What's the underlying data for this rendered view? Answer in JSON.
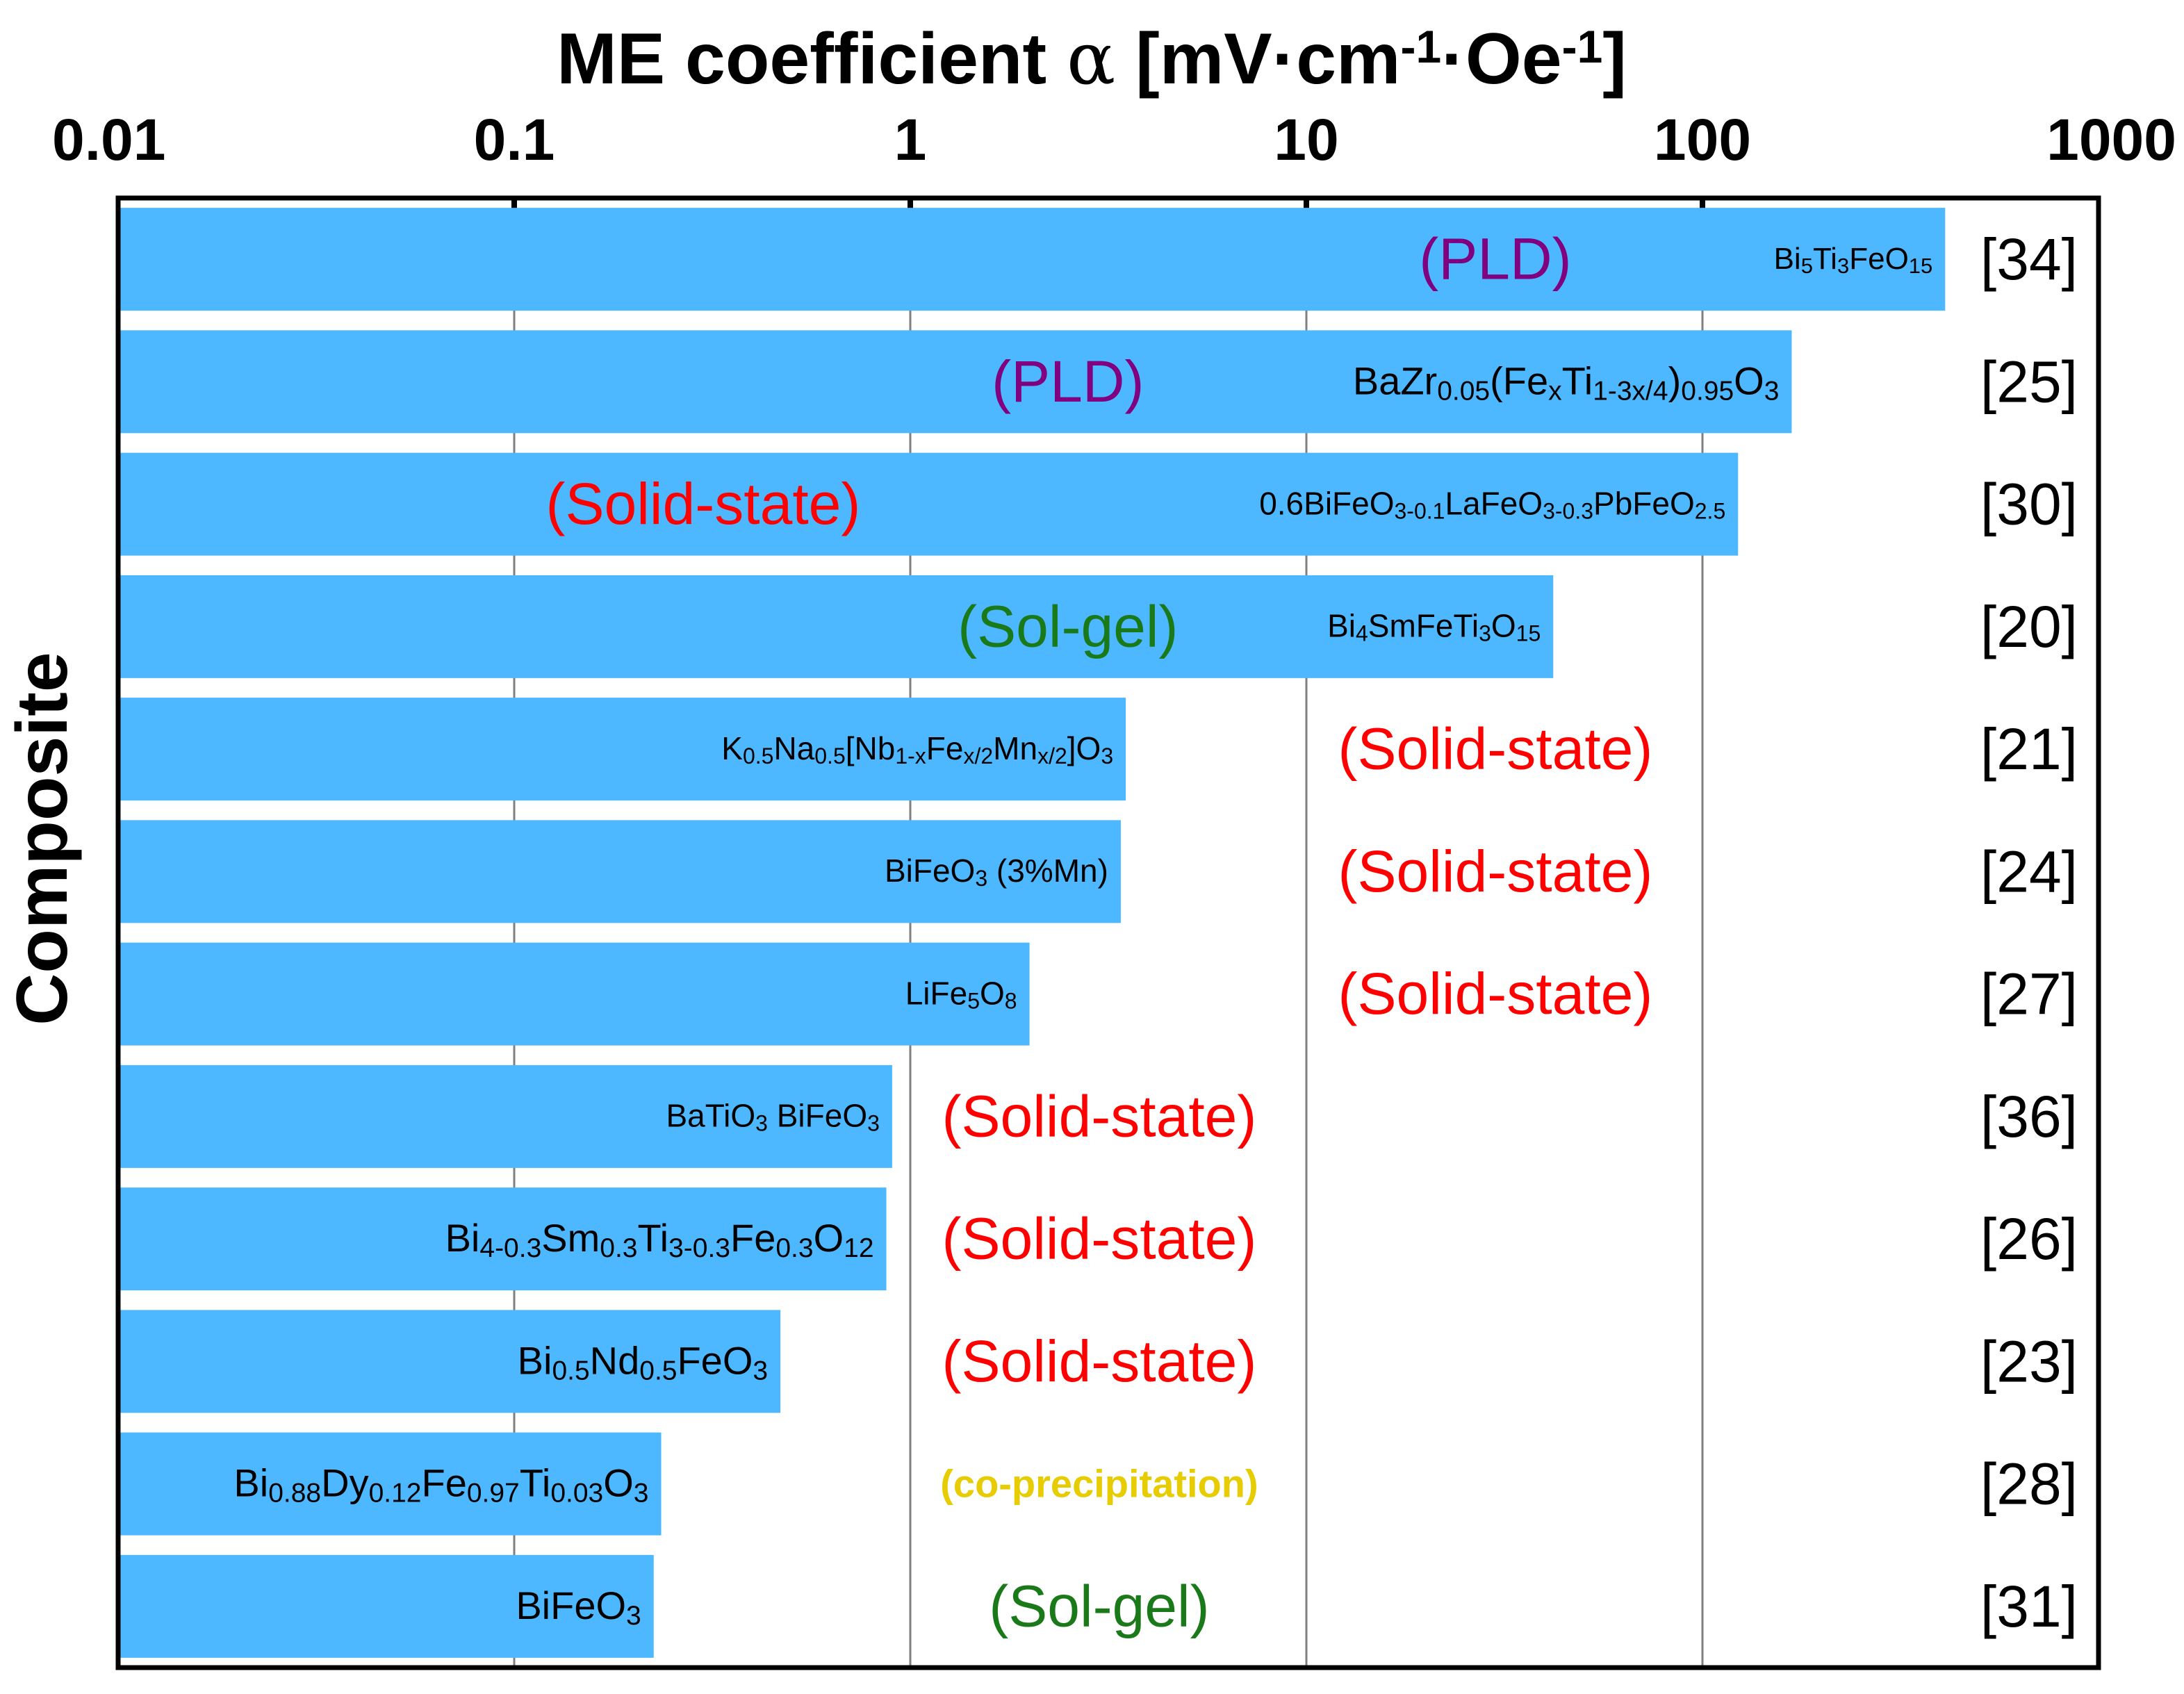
{
  "chart_data": {
    "type": "bar",
    "orientation": "horizontal",
    "x_scale": "log",
    "xlim": [
      0.01,
      1000
    ],
    "grid": true,
    "title": "",
    "xlabel": "ME coefficient α [mV·cm-1·Oe-1]",
    "xlabel_parts": {
      "main": "ME coefficient ",
      "alpha": "α",
      "open": " [mV",
      "dot": "·",
      "cm": "cm",
      "exp": "-1",
      "oe": "Oe",
      "close": "]"
    },
    "ylabel": "Composite",
    "ticks": [
      {
        "value": 0.01,
        "label": "0.01"
      },
      {
        "value": 0.1,
        "label": "0.1"
      },
      {
        "value": 1,
        "label": "1"
      },
      {
        "value": 10,
        "label": "10"
      },
      {
        "value": 100,
        "label": "100"
      },
      {
        "value": 1000,
        "label": "1000"
      }
    ],
    "colors": {
      "bar": "#4db8ff",
      "PLD": "#800080",
      "Solid-state": "#ff0000",
      "Sol-gel": "#1a7a1a",
      "co-precipitation": "#e6cc00",
      "grid": "#808080",
      "frame": "#000000"
    },
    "bars": [
      {
        "composite": "Bi5Ti3FeO15",
        "label_parts": [
          [
            "Bi",
            ""
          ],
          [
            "5",
            "sub"
          ],
          [
            "Ti",
            ""
          ],
          [
            "3",
            "sub"
          ],
          [
            "FeO",
            ""
          ],
          [
            "15",
            "sub"
          ]
        ],
        "value": 410,
        "method": "(PLD)",
        "method_key": "PLD",
        "method_at": 30,
        "ref": "[34]",
        "label_size": 44
      },
      {
        "composite": "BaZr0.05(FexTi1-3x/4)0.95O3",
        "label_parts": [
          [
            "BaZr",
            ""
          ],
          [
            "0.05",
            "sub"
          ],
          [
            "(Fe",
            ""
          ],
          [
            "x",
            "sub"
          ],
          [
            "Ti",
            ""
          ],
          [
            "1-3x/4",
            "sub"
          ],
          [
            ")",
            ""
          ],
          [
            "0.95",
            "sub"
          ],
          [
            "O",
            ""
          ],
          [
            "3",
            "sub"
          ]
        ],
        "value": 168,
        "method": "(PLD)",
        "method_key": "PLD",
        "method_at": 2.5,
        "ref": "[25]",
        "label_size": 56
      },
      {
        "composite": "0.6BiFeO3-0.1LaFeO3-0.3PbFeO2.5",
        "label_parts": [
          [
            "0.6BiFeO",
            ""
          ],
          [
            "3-0.1",
            "sub"
          ],
          [
            "LaFeO",
            ""
          ],
          [
            "3-0.3",
            "sub"
          ],
          [
            "PbFeO",
            ""
          ],
          [
            "2.5",
            "sub"
          ]
        ],
        "value": 123,
        "method": "(Solid-state)",
        "method_key": "Solid-state",
        "method_at": 0.3,
        "ref": "[30]",
        "label_size": 46
      },
      {
        "composite": "Bi4SmFeTi3O15",
        "label_parts": [
          [
            "Bi",
            ""
          ],
          [
            "4",
            "sub"
          ],
          [
            "SmFeTi",
            ""
          ],
          [
            "3",
            "sub"
          ],
          [
            "O",
            ""
          ],
          [
            "15",
            "sub"
          ]
        ],
        "value": 42,
        "method": "(Sol-gel)",
        "method_key": "Sol-gel",
        "method_at": 2.5,
        "ref": "[20]",
        "label_size": 46
      },
      {
        "composite": "K0.5Na0.5[Nb1-xFex/2Mnx/2]O3",
        "label_parts": [
          [
            "K",
            ""
          ],
          [
            "0.5",
            "sub"
          ],
          [
            "Na",
            ""
          ],
          [
            "0.5",
            "sub"
          ],
          [
            "[Nb",
            ""
          ],
          [
            "1-x",
            "sub"
          ],
          [
            "Fe",
            ""
          ],
          [
            "x/2",
            "sub"
          ],
          [
            "Mn",
            ""
          ],
          [
            "x/2",
            "sub"
          ],
          [
            "]O",
            ""
          ],
          [
            "3",
            "sub"
          ]
        ],
        "value": 3.5,
        "method": "(Solid-state)",
        "method_key": "Solid-state",
        "method_at": 30,
        "ref": "[21]",
        "label_size": 46
      },
      {
        "composite": "BiFeO3 (3%Mn)",
        "label_parts": [
          [
            "BiFeO",
            ""
          ],
          [
            "3",
            "sub"
          ],
          [
            " (3%Mn)",
            ""
          ]
        ],
        "value": 3.4,
        "method": "(Solid-state)",
        "method_key": "Solid-state",
        "method_at": 30,
        "ref": "[24]",
        "label_size": 46
      },
      {
        "composite": "LiFe5O8",
        "label_parts": [
          [
            "LiFe",
            ""
          ],
          [
            "5",
            "sub"
          ],
          [
            "O",
            ""
          ],
          [
            "8",
            "sub"
          ]
        ],
        "value": 2.0,
        "method": "(Solid-state)",
        "method_key": "Solid-state",
        "method_at": 30,
        "ref": "[27]",
        "label_size": 46
      },
      {
        "composite": "BaTiO3 BiFeO3",
        "label_parts": [
          [
            "BaTiO",
            ""
          ],
          [
            "3",
            "sub"
          ],
          [
            " BiFeO",
            ""
          ],
          [
            "3",
            "sub"
          ]
        ],
        "value": 0.9,
        "method": "(Solid-state)",
        "method_key": "Solid-state",
        "method_at": 3,
        "ref": "[36]",
        "label_size": 46
      },
      {
        "composite": "Bi4-0.3Sm0.3Ti3-0.3Fe0.3O12",
        "label_parts": [
          [
            "Bi",
            ""
          ],
          [
            "4-0.3",
            "sub"
          ],
          [
            "Sm",
            ""
          ],
          [
            "0.3",
            "sub"
          ],
          [
            "Ti",
            ""
          ],
          [
            "3-0.3",
            "sub"
          ],
          [
            "Fe",
            ""
          ],
          [
            "0.3",
            "sub"
          ],
          [
            "O",
            ""
          ],
          [
            "12",
            "sub"
          ]
        ],
        "value": 0.87,
        "method": "(Solid-state)",
        "method_key": "Solid-state",
        "method_at": 3,
        "ref": "[26]",
        "label_size": 56
      },
      {
        "composite": "Bi0.5Nd0.5FeO3",
        "label_parts": [
          [
            "Bi",
            ""
          ],
          [
            "0.5",
            "sub"
          ],
          [
            "Nd",
            ""
          ],
          [
            "0.5",
            "sub"
          ],
          [
            "FeO",
            ""
          ],
          [
            "3",
            "sub"
          ]
        ],
        "value": 0.47,
        "method": "(Solid-state)",
        "method_key": "Solid-state",
        "method_at": 3,
        "ref": "[23]",
        "label_size": 56
      },
      {
        "composite": "Bi0.88Dy0.12Fe0.97Ti0.03O3",
        "label_parts": [
          [
            "Bi",
            ""
          ],
          [
            "0.88",
            "sub"
          ],
          [
            "Dy",
            ""
          ],
          [
            "0.12",
            "sub"
          ],
          [
            "Fe",
            ""
          ],
          [
            "0.97",
            "sub"
          ],
          [
            "Ti",
            ""
          ],
          [
            "0.03",
            "sub"
          ],
          [
            "O",
            ""
          ],
          [
            "3",
            "sub"
          ]
        ],
        "value": 0.235,
        "method": "(co-precipitation)",
        "method_key": "co-precipitation",
        "method_at": 3,
        "ref": "[28]",
        "label_size": 56
      },
      {
        "composite": "BiFeO3",
        "label_parts": [
          [
            "BiFeO",
            ""
          ],
          [
            "3",
            "sub"
          ]
        ],
        "value": 0.225,
        "method": "(Sol-gel)",
        "method_key": "Sol-gel",
        "method_at": 3,
        "ref": "[31]",
        "label_size": 56
      }
    ]
  }
}
